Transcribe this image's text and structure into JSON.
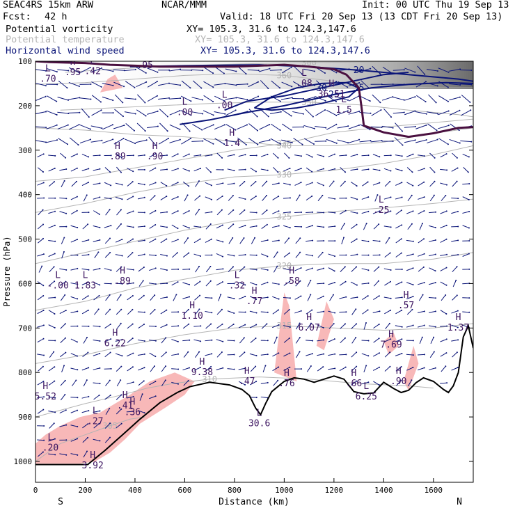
{
  "header": {
    "model": "SEAC4RS 15km ARW",
    "org": "NCAR/MMM",
    "init": "Init: 00 UTC Thu 19 Sep 13",
    "fcst_label": "Fcst:",
    "fcst_value": "42 h",
    "valid": "Valid: 18 UTC Fri 20 Sep 13 (13 CDT Fri 20 Sep 13)",
    "fields": [
      {
        "name": "Potential vorticity",
        "xy": "XY= 105.3, 31.6 to 124.3,147.6"
      },
      {
        "name": "Potential temperature",
        "xy": "XY= 105.3, 31.6 to 124.3,147.6"
      },
      {
        "name": "Horizontal wind speed",
        "xy": "XY= 105.3, 31.6 to 124.3,147.6"
      }
    ]
  },
  "colors": {
    "pv": "#000000",
    "theta": "#b4b4b4",
    "wind": "#0a1478",
    "shade_pink": "#f8b8b8",
    "terrain": "#000000",
    "tropopause": "#4a1040"
  },
  "chart_data": {
    "type": "cross-section",
    "xlabel": "Distance (km)",
    "ylabel": "Pressure (hPa)",
    "xlim": [
      0,
      1760
    ],
    "ylim": [
      1050,
      100
    ],
    "x_ticks": [
      0,
      200,
      400,
      600,
      800,
      1000,
      1200,
      1400,
      1600
    ],
    "y_ticks": [
      100,
      200,
      300,
      400,
      500,
      600,
      700,
      800,
      900,
      1000
    ],
    "x_end_labels": {
      "left": "S",
      "right": "N"
    },
    "terrain": {
      "x": [
        0,
        60,
        120,
        210,
        280,
        350,
        420,
        500,
        570,
        620,
        700,
        780,
        830,
        860,
        885,
        905,
        925,
        950,
        1000,
        1040,
        1080,
        1120,
        1160,
        1200,
        1240,
        1280,
        1320,
        1360,
        1400,
        1440,
        1470,
        1500,
        1530,
        1560,
        1600,
        1640,
        1660,
        1680,
        1700,
        1720,
        1740,
        1760
      ],
      "p": [
        1007,
        1007,
        1007,
        1007,
        975,
        940,
        905,
        868,
        845,
        832,
        822,
        828,
        838,
        852,
        880,
        895,
        870,
        843,
        820,
        812,
        815,
        822,
        815,
        808,
        815,
        843,
        848,
        846,
        822,
        836,
        845,
        840,
        823,
        812,
        820,
        838,
        845,
        830,
        800,
        720,
        695,
        745
      ]
    },
    "theta_contours": [
      {
        "label": "300",
        "x": [
          120,
          300,
          500,
          700,
          900,
          1100,
          1300,
          1500,
          1700,
          1760
        ],
        "p": [
          125,
          118,
          112,
          108,
          105,
          103,
          102,
          101,
          100,
          100
        ]
      },
      {
        "label": "360",
        "x": [
          0,
          200,
          400,
          600,
          800,
          1000,
          1200,
          1400,
          1600,
          1760
        ],
        "p": [
          152,
          148,
          140,
          132,
          128,
          132,
          145,
          155,
          160,
          160
        ]
      },
      {
        "label": "350",
        "x": [
          100,
          300,
          500,
          700,
          900,
          1100,
          1300,
          1500,
          1700,
          1760
        ],
        "p": [
          210,
          205,
          200,
          195,
          192,
          192,
          198,
          210,
          220,
          225
        ]
      },
      {
        "label": "340",
        "x": [
          0,
          200,
          400,
          600,
          800,
          1000,
          1200,
          1400,
          1600,
          1760
        ],
        "p": [
          250,
          255,
          265,
          270,
          280,
          290,
          290,
          282,
          262,
          250
        ]
      },
      {
        "label": "335",
        "x": [
          0,
          200,
          400,
          600,
          800,
          1000,
          1200,
          1400,
          1600,
          1760
        ],
        "p": [
          370,
          360,
          340,
          320,
          300,
          285,
          260,
          248,
          238,
          230
        ]
      },
      {
        "label": "330",
        "x": [
          0,
          200,
          400,
          600,
          800,
          1000,
          1200,
          1400,
          1600,
          1760
        ],
        "p": [
          440,
          420,
          395,
          375,
          360,
          355,
          345,
          330,
          310,
          290
        ]
      },
      {
        "label": "325",
        "x": [
          0,
          200,
          400,
          600,
          800,
          1000,
          1200,
          1400,
          1600,
          1760
        ],
        "p": [
          555,
          530,
          505,
          480,
          460,
          450,
          438,
          430,
          420,
          410
        ]
      },
      {
        "label": "320",
        "x": [
          0,
          200,
          400,
          600,
          800,
          1000,
          1200,
          1400,
          1600,
          1760
        ],
        "p": [
          660,
          640,
          610,
          590,
          570,
          560,
          555,
          555,
          545,
          530
        ]
      },
      {
        "label": "315",
        "x": [
          0,
          200,
          400,
          600,
          800,
          1000,
          1200,
          1400,
          1600,
          1760
        ],
        "p": [
          780,
          760,
          735,
          715,
          700,
          695,
          700,
          705,
          700,
          690
        ]
      },
      {
        "label": "310",
        "x": [
          0,
          200,
          350,
          450,
          550,
          700,
          900,
          1100,
          1300,
          1500,
          1600
        ],
        "p": [
          900,
          870,
          850,
          835,
          825,
          815,
          810,
          815,
          825,
          830,
          835
        ]
      },
      {
        "label": "305",
        "x": [
          0,
          100,
          200,
          300,
          380,
          440
        ],
        "p": [
          1000,
          960,
          940,
          920,
          905,
          900
        ]
      }
    ],
    "wind_speed_contours": [
      {
        "label": "20",
        "x": [
          380,
          600,
          900,
          1100,
          1300,
          1500,
          1700,
          1760
        ],
        "p": [
          112,
          110,
          108,
          112,
          120,
          130,
          140,
          145
        ]
      },
      {
        "label": "25",
        "x": [
          580,
          700,
          850,
          1000,
          1200,
          1350,
          1500,
          1650,
          1760
        ],
        "p": [
          242,
          232,
          215,
          200,
          175,
          160,
          152,
          148,
          150
        ]
      },
      {
        "label": "30",
        "x": [
          760,
          850,
          1000,
          1150,
          1300,
          1400,
          1500
        ],
        "p": [
          210,
          190,
          178,
          160,
          142,
          130,
          125
        ]
      },
      {
        "label": "35",
        "x": [
          880,
          950,
          1050,
          1150,
          1250,
          1300,
          1260,
          1150,
          1050,
          950,
          880
        ],
        "p": [
          205,
          180,
          160,
          150,
          148,
          160,
          180,
          195,
          205,
          210,
          205
        ]
      }
    ],
    "pv_tropopause": {
      "x": [
        0,
        60,
        120,
        200,
        300,
        400,
        500,
        650,
        800,
        900,
        1000,
        1100,
        1200,
        1250,
        1300,
        1310,
        1320,
        1400,
        1500,
        1600,
        1700,
        1760
      ],
      "p": [
        100,
        102,
        103,
        104,
        108,
        110,
        112,
        112,
        112,
        110,
        108,
        112,
        118,
        130,
        160,
        200,
        245,
        260,
        270,
        262,
        250,
        248
      ]
    },
    "extrema": [
      {
        "type": "H",
        "value": ".95",
        "x": 150,
        "p": 120
      },
      {
        "type": "L",
        "value": ".42",
        "x": 230,
        "p": 118
      },
      {
        "type": "H",
        "value": ".95",
        "x": 440,
        "p": 105
      },
      {
        "type": "L",
        "value": ".70",
        "x": 50,
        "p": 135
      },
      {
        "type": "L",
        "value": ".00",
        "x": 600,
        "p": 210
      },
      {
        "type": "L",
        "value": ".00",
        "x": 760,
        "p": 195
      },
      {
        "type": "L",
        "value": ".08",
        "x": 1080,
        "p": 145
      },
      {
        "type": "H",
        "value": "36.51",
        "x": 1190,
        "p": 170
      },
      {
        "type": "L",
        "value": "1.5",
        "x": 1240,
        "p": 205
      },
      {
        "type": "H",
        "value": ".89",
        "x": 330,
        "p": 310
      },
      {
        "type": "H",
        "value": ".90",
        "x": 480,
        "p": 310
      },
      {
        "type": "H",
        "value": "1.4",
        "x": 790,
        "p": 280
      },
      {
        "type": "L",
        "value": ".25",
        "x": 1390,
        "p": 430
      },
      {
        "type": "L",
        "value": "-.00",
        "x": 90,
        "p": 600
      },
      {
        "type": "L",
        "value": "1.83",
        "x": 200,
        "p": 600
      },
      {
        "type": "H",
        "value": ".89",
        "x": 350,
        "p": 590
      },
      {
        "type": "L",
        "value": ".32",
        "x": 810,
        "p": 600
      },
      {
        "type": "H",
        "value": ".77",
        "x": 880,
        "p": 635
      },
      {
        "type": "H",
        "value": ".58",
        "x": 1030,
        "p": 590
      },
      {
        "type": "H",
        "value": ".57",
        "x": 1490,
        "p": 645
      },
      {
        "type": "H",
        "value": "1.10",
        "x": 630,
        "p": 668
      },
      {
        "type": "H",
        "value": "6.07",
        "x": 1100,
        "p": 695
      },
      {
        "type": "H",
        "value": "1.37",
        "x": 1700,
        "p": 695
      },
      {
        "type": "H",
        "value": "6.22",
        "x": 320,
        "p": 730
      },
      {
        "type": "H",
        "value": "7.69",
        "x": 1430,
        "p": 733
      },
      {
        "type": "H",
        "value": "9.38",
        "x": 670,
        "p": 795
      },
      {
        "type": "H",
        "value": ".47",
        "x": 850,
        "p": 815
      },
      {
        "type": "H",
        "value": ".76",
        "x": 1010,
        "p": 820
      },
      {
        "type": "H",
        "value": ".66",
        "x": 1280,
        "p": 820
      },
      {
        "type": "H",
        "value": ".90",
        "x": 1460,
        "p": 815
      },
      {
        "type": "H",
        "value": "5.52",
        "x": 40,
        "p": 850
      },
      {
        "type": "L",
        "value": "6.25",
        "x": 1330,
        "p": 850
      },
      {
        "type": "H",
        "value": ".41",
        "x": 360,
        "p": 870
      },
      {
        "type": "H",
        "value": ".36",
        "x": 390,
        "p": 885
      },
      {
        "type": "L",
        "value": ".27",
        "x": 240,
        "p": 905
      },
      {
        "type": "L",
        "value": "30.6",
        "x": 900,
        "p": 910
      },
      {
        "type": "L",
        "value": ".20",
        "x": 60,
        "p": 965
      },
      {
        "type": "H",
        "value": "3.92",
        "x": 230,
        "p": 1005
      }
    ],
    "pv_shaded_regions": [
      {
        "x": [
          0,
          60,
          120,
          180,
          240,
          300,
          360,
          420,
          520,
          600,
          640,
          560,
          460,
          380,
          320,
          260,
          180,
          100,
          40,
          0
        ],
        "p": [
          1005,
          1005,
          1005,
          1005,
          1000,
          980,
          950,
          915,
          880,
          850,
          820,
          800,
          820,
          850,
          870,
          890,
          900,
          920,
          940,
          960
        ]
      },
      {
        "x": [
          260,
          290,
          320,
          350
        ],
        "p": [
          170,
          140,
          130,
          160
        ]
      },
      {
        "x": [
          960,
          1000,
          1020,
          1050
        ],
        "p": [
          800,
          620,
          650,
          820
        ]
      },
      {
        "x": [
          1130,
          1170,
          1200,
          1160
        ],
        "p": [
          740,
          640,
          680,
          750
        ]
      },
      {
        "x": [
          1400,
          1440,
          1460,
          1420
        ],
        "p": [
          730,
          710,
          740,
          760
        ]
      },
      {
        "x": [
          1480,
          1520,
          1540,
          1500
        ],
        "p": [
          820,
          740,
          780,
          840
        ]
      }
    ],
    "wind_arrows_note": "field of small blue wind vectors throughout the section"
  }
}
